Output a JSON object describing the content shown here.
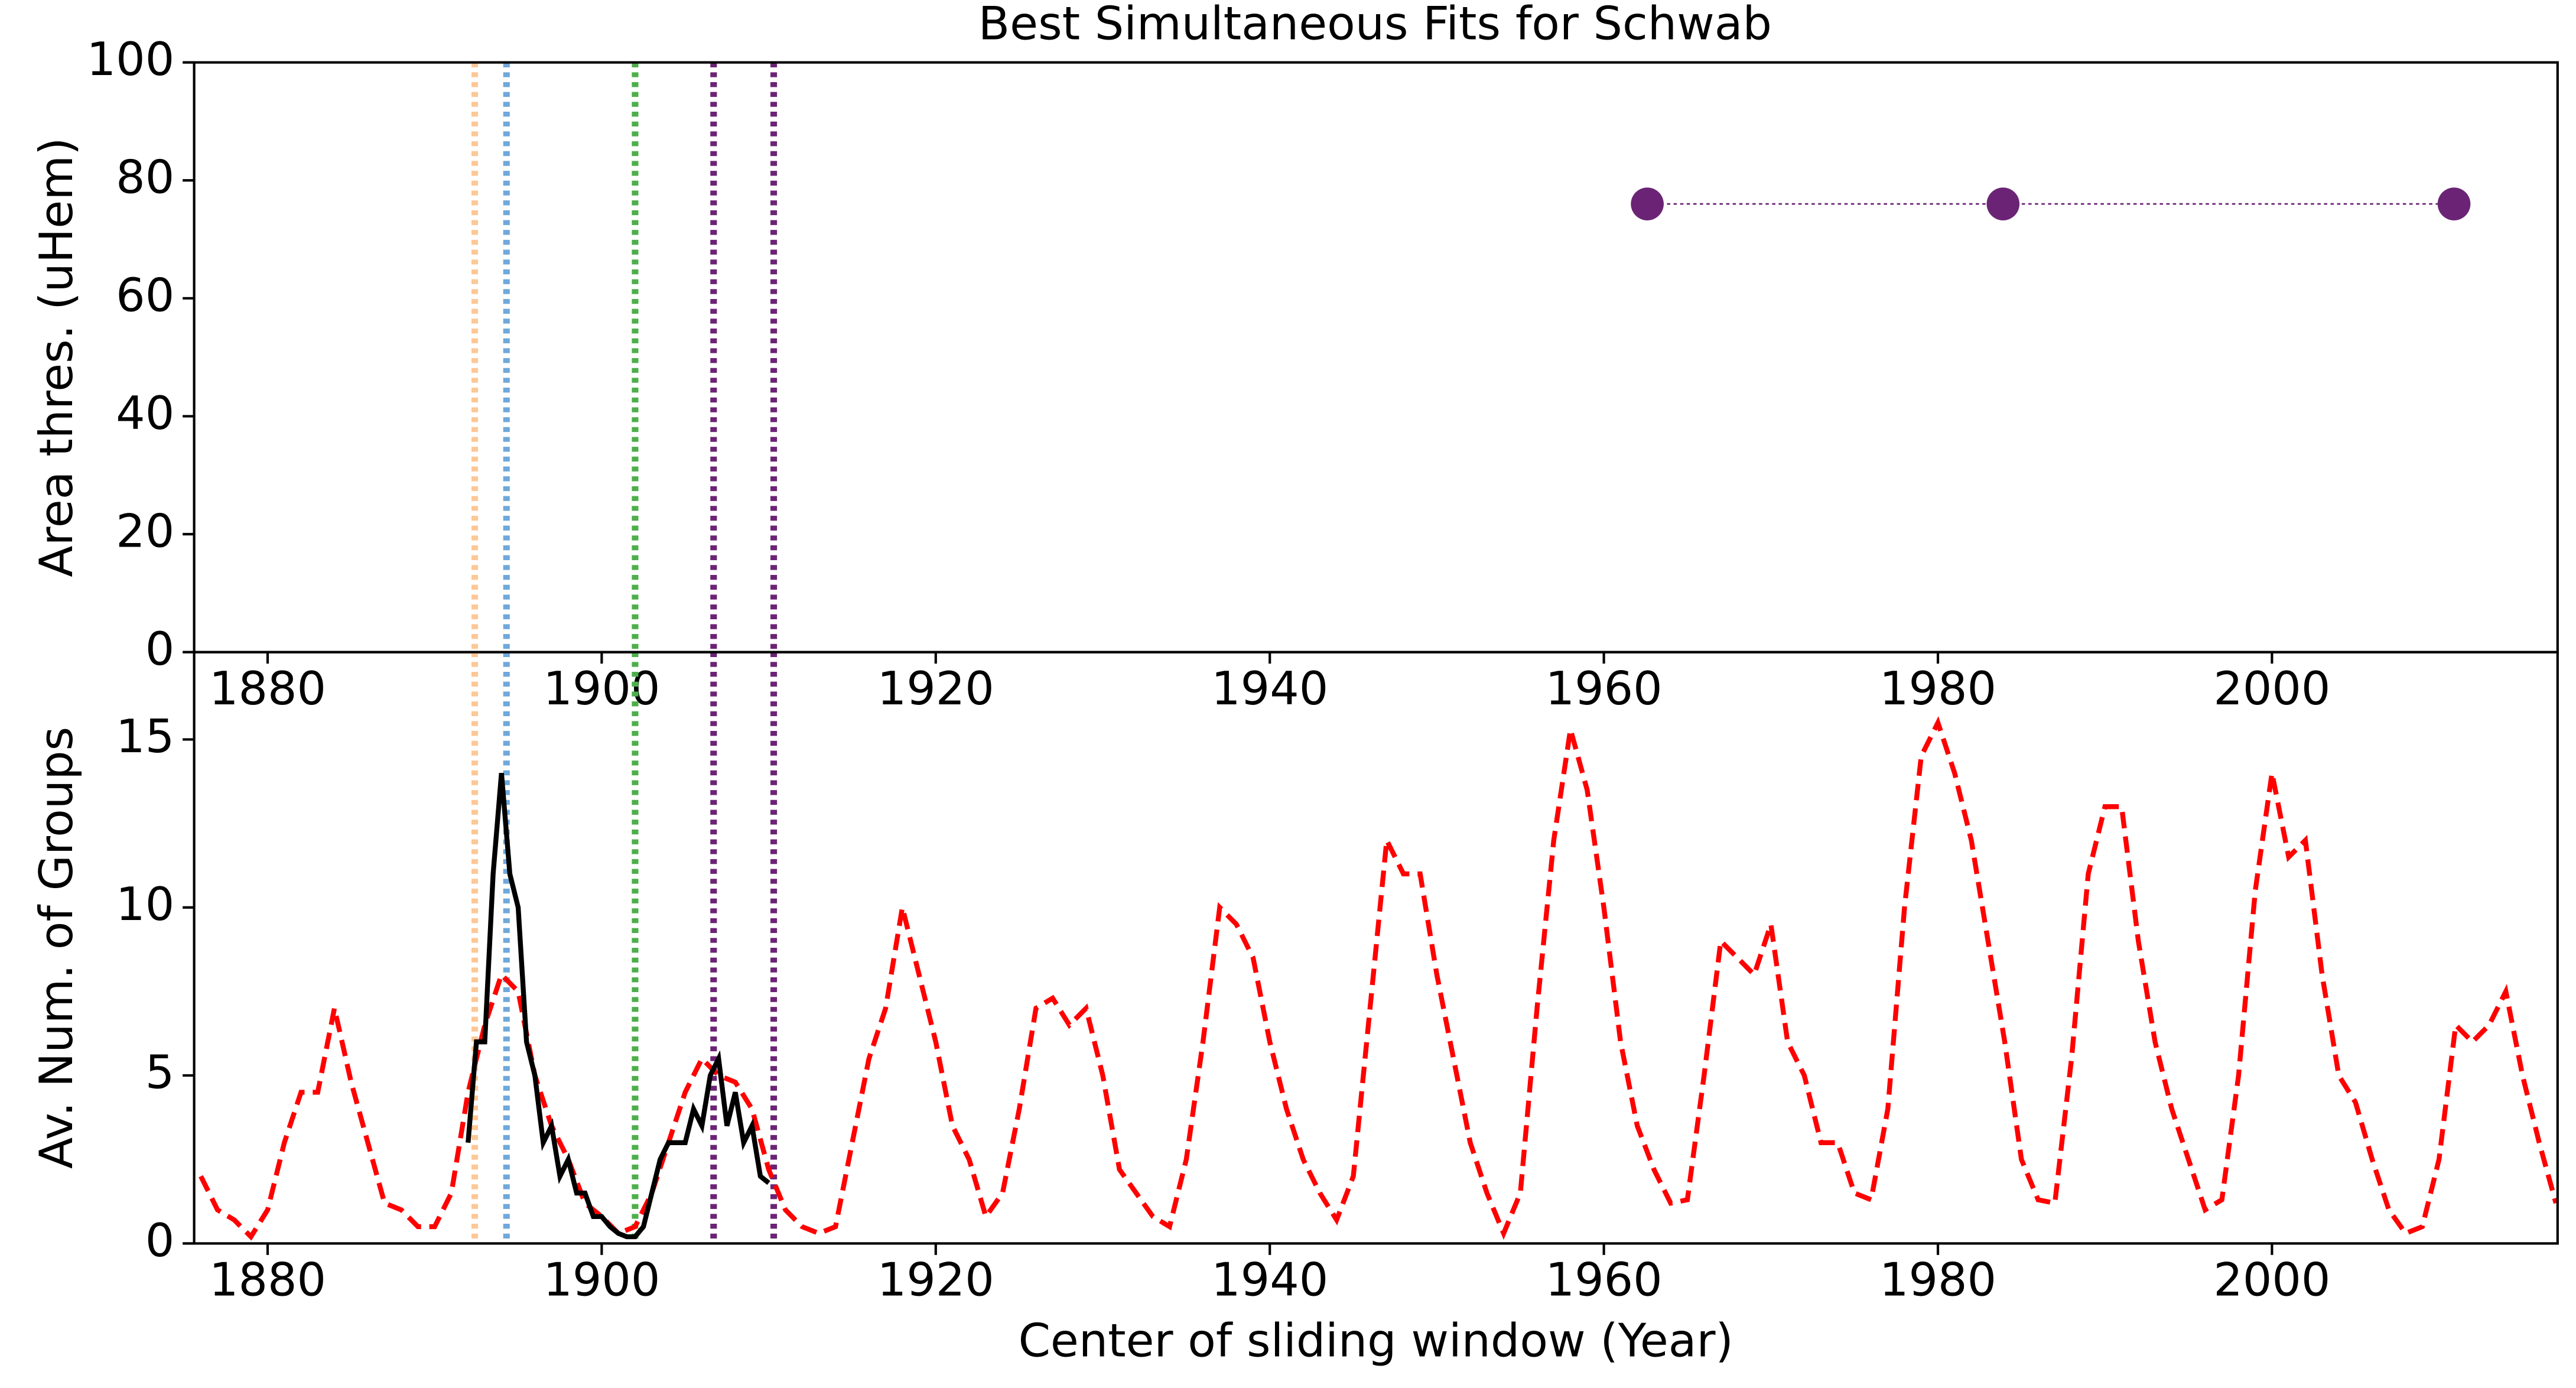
{
  "chart_data": [
    {
      "type": "scatter",
      "title": "Best Simultaneous Fits for Schwab",
      "ylabel": "Area thres. (uHem)",
      "xlim": [
        1875.6,
        2017.1
      ],
      "xticks": [
        1880,
        1900,
        1920,
        1940,
        1960,
        1980,
        2000
      ],
      "ylim": [
        0,
        100
      ],
      "yticks": [
        0,
        20,
        40,
        60,
        80,
        100
      ],
      "series": [
        {
          "color": "#6b2475",
          "x": [
            1962.6,
            1983.9,
            2010.9
          ],
          "values": [
            76,
            76,
            76
          ]
        }
      ],
      "vlines": [
        {
          "x": 1892.4,
          "color": "#fdc896"
        },
        {
          "x": 1894.3,
          "color": "#6fa8dc"
        },
        {
          "x": 1902.0,
          "color": "#4daf4a"
        },
        {
          "x": 1906.7,
          "color": "#6b2475"
        },
        {
          "x": 1910.3,
          "color": "#6b2475"
        }
      ]
    },
    {
      "type": "line",
      "ylabel": "Av. Num. of Groups",
      "xlabel": "Center of sliding window (Year)",
      "xlim": [
        1875.6,
        2017.1
      ],
      "xticks": [
        1880,
        1900,
        1920,
        1940,
        1960,
        1980,
        2000
      ],
      "ylim": [
        0,
        17.6
      ],
      "yticks": [
        0,
        5,
        10,
        15
      ],
      "series": [
        {
          "color": "#ff0000",
          "dash": true,
          "x": [
            1876,
            1877,
            1878,
            1879,
            1880,
            1881,
            1882,
            1883,
            1884,
            1885,
            1886,
            1887,
            1888,
            1889,
            1890,
            1891,
            1892,
            1893,
            1894,
            1895,
            1896,
            1897,
            1898,
            1899,
            1900,
            1901,
            1902,
            1903,
            1904,
            1905,
            1906,
            1907,
            1908,
            1909,
            1910,
            1911,
            1912,
            1913,
            1914,
            1915,
            1916,
            1917,
            1918,
            1919,
            1920,
            1921,
            1922,
            1923,
            1924,
            1925,
            1926,
            1927,
            1928,
            1929,
            1930,
            1931,
            1932,
            1933,
            1934,
            1935,
            1936,
            1937,
            1938,
            1939,
            1940,
            1941,
            1942,
            1943,
            1944,
            1945,
            1946,
            1947,
            1948,
            1949,
            1950,
            1951,
            1952,
            1953,
            1954,
            1955,
            1956,
            1957,
            1958,
            1959,
            1960,
            1961,
            1962,
            1963,
            1964,
            1965,
            1966,
            1967,
            1968,
            1969,
            1970,
            1971,
            1972,
            1973,
            1974,
            1975,
            1976,
            1977,
            1978,
            1979,
            1980,
            1981,
            1982,
            1983,
            1984,
            1985,
            1986,
            1987,
            1988,
            1989,
            1990,
            1991,
            1992,
            1993,
            1994,
            1995,
            1996,
            1997,
            1998,
            1999,
            2000,
            2001,
            2002,
            2003,
            2004,
            2005,
            2006,
            2007,
            2008,
            2009,
            2010,
            2011,
            2012,
            2013,
            2014,
            2015,
            2016,
            2017
          ],
          "values": [
            2,
            1,
            0.7,
            0.2,
            1,
            3,
            4.5,
            4.5,
            7,
            4.8,
            3,
            1.2,
            1,
            0.5,
            0.5,
            1.5,
            4.5,
            6.5,
            8,
            7.5,
            5,
            3.5,
            2.5,
            1.2,
            0.8,
            0.3,
            0.5,
            1.5,
            3,
            4.5,
            5.5,
            5,
            4.8,
            4,
            2.2,
            1,
            0.5,
            0.3,
            0.5,
            3,
            5.5,
            7,
            10,
            8,
            6,
            3.5,
            2.5,
            0.8,
            1.5,
            4,
            7,
            7.3,
            6.5,
            7,
            5,
            2.2,
            1.5,
            0.8,
            0.5,
            2.5,
            6,
            10,
            9.5,
            8.5,
            6,
            4,
            2.5,
            1.5,
            0.7,
            2,
            7,
            12,
            11,
            11,
            8,
            5.5,
            3,
            1.5,
            0.3,
            1.5,
            7,
            12,
            15.3,
            13.5,
            10,
            6,
            3.5,
            2.2,
            1.2,
            1.3,
            5,
            9,
            8.5,
            8,
            9.5,
            6,
            5,
            3,
            3,
            1.5,
            1.3,
            4,
            10,
            14.5,
            15.5,
            14,
            12,
            9,
            6,
            2.5,
            1.3,
            1.2,
            5.5,
            11,
            13,
            13,
            9,
            6,
            4,
            2.5,
            1,
            1.3,
            5,
            10.5,
            14,
            11.5,
            12,
            8,
            5,
            4.2,
            2.5,
            1,
            0.3,
            0.5,
            2.5,
            6.5,
            6,
            6.5,
            7.5,
            5,
            3,
            1.2
          ]
        },
        {
          "color": "#000000",
          "dash": false,
          "x": [
            1892,
            1892.5,
            1893,
            1893.5,
            1894,
            1894.5,
            1895,
            1895.5,
            1896,
            1896.5,
            1897,
            1897.5,
            1898,
            1898.5,
            1899,
            1899.5,
            1900,
            1900.5,
            1901,
            1901.5,
            1902,
            1902.5,
            1903,
            1903.5,
            1904,
            1904.5,
            1905,
            1905.5,
            1906,
            1906.5,
            1907,
            1907.5,
            1908,
            1908.5,
            1909,
            1909.5,
            1910
          ],
          "values": [
            3,
            6,
            6,
            11,
            14,
            11,
            10,
            6,
            5,
            3,
            3.5,
            2,
            2.5,
            1.5,
            1.5,
            0.8,
            0.8,
            0.5,
            0.3,
            0.2,
            0.2,
            0.5,
            1.5,
            2.5,
            3,
            3,
            3,
            4,
            3.5,
            5,
            5.5,
            3.5,
            4.5,
            3,
            3.5,
            2,
            1.8
          ]
        }
      ],
      "vlines": [
        {
          "x": 1892.4,
          "color": "#fdc896"
        },
        {
          "x": 1894.3,
          "color": "#6fa8dc"
        },
        {
          "x": 1902.0,
          "color": "#4daf4a"
        },
        {
          "x": 1906.7,
          "color": "#6b2475"
        },
        {
          "x": 1910.3,
          "color": "#6b2475"
        }
      ]
    }
  ]
}
